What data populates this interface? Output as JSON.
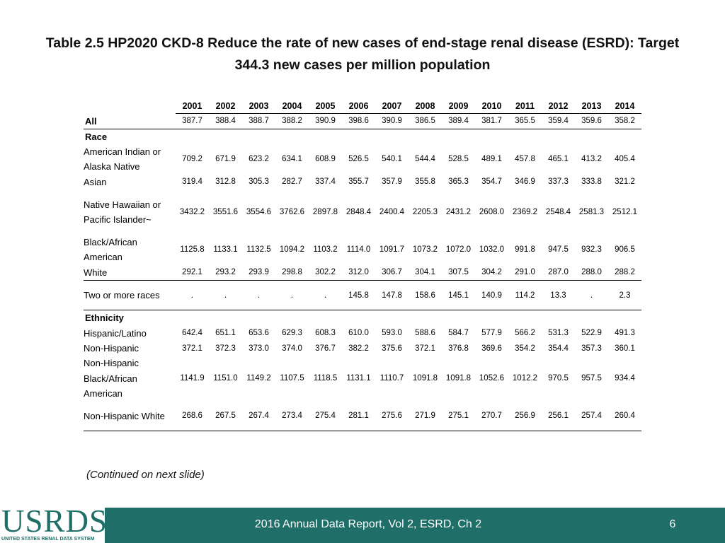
{
  "title": {
    "line1": "Table 2.5  HP2020 CKD-8 Reduce the rate of new cases of end-stage renal disease (ESRD): Target",
    "line2": "344.3 new cases per million population"
  },
  "table": {
    "years": [
      "2001",
      "2002",
      "2003",
      "2004",
      "2005",
      "2006",
      "2007",
      "2008",
      "2009",
      "2010",
      "2011",
      "2012",
      "2013",
      "2014"
    ],
    "all": {
      "label": "All",
      "values": [
        "387.7",
        "388.4",
        "388.7",
        "388.2",
        "390.9",
        "398.6",
        "390.9",
        "386.5",
        "389.4",
        "381.7",
        "365.5",
        "359.4",
        "359.6",
        "358.2"
      ]
    },
    "race_header": "Race",
    "race": [
      {
        "label": "American Indian or Alaska Native",
        "values": [
          "709.2",
          "671.9",
          "623.2",
          "634.1",
          "608.9",
          "526.5",
          "540.1",
          "544.4",
          "528.5",
          "489.1",
          "457.8",
          "465.1",
          "413.2",
          "405.4"
        ]
      },
      {
        "label": "Asian",
        "values": [
          "319.4",
          "312.8",
          "305.3",
          "282.7",
          "337.4",
          "355.7",
          "357.9",
          "355.8",
          "365.3",
          "354.7",
          "346.9",
          "337.3",
          "333.8",
          "321.2"
        ]
      },
      {
        "label": "Native Hawaiian or Pacific Islander~",
        "values": [
          "3432.2",
          "3551.6",
          "3554.6",
          "3762.6",
          "2897.8",
          "2848.4",
          "2400.4",
          "2205.3",
          "2431.2",
          "2608.0",
          "2369.2",
          "2548.4",
          "2581.3",
          "2512.1"
        ]
      },
      {
        "label": "Black/African American",
        "values": [
          "1125.8",
          "1133.1",
          "1132.5",
          "1094.2",
          "1103.2",
          "1114.0",
          "1091.7",
          "1073.2",
          "1072.0",
          "1032.0",
          "991.8",
          "947.5",
          "932.3",
          "906.5"
        ]
      },
      {
        "label": "White",
        "values": [
          "292.1",
          "293.2",
          "293.9",
          "298.8",
          "302.2",
          "312.0",
          "306.7",
          "304.1",
          "307.5",
          "304.2",
          "291.0",
          "287.0",
          "288.0",
          "288.2"
        ]
      },
      {
        "label": "Two or more races",
        "values": [
          ".",
          ".",
          ".",
          ".",
          ".",
          "145.8",
          "147.8",
          "158.6",
          "145.1",
          "140.9",
          "114.2",
          "13.3",
          ".",
          "2.3"
        ]
      }
    ],
    "ethnicity_header": "Ethnicity",
    "ethnicity": [
      {
        "label": "Hispanic/Latino",
        "values": [
          "642.4",
          "651.1",
          "653.6",
          "629.3",
          "608.3",
          "610.0",
          "593.0",
          "588.6",
          "584.7",
          "577.9",
          "566.2",
          "531.3",
          "522.9",
          "491.3"
        ]
      },
      {
        "label": "Non-Hispanic",
        "values": [
          "372.1",
          "372.3",
          "373.0",
          "374.0",
          "376.7",
          "382.2",
          "375.6",
          "372.1",
          "376.8",
          "369.6",
          "354.2",
          "354.4",
          "357.3",
          "360.1"
        ]
      },
      {
        "label": "Non-Hispanic Black/African American",
        "values": [
          "1141.9",
          "1151.0",
          "1149.2",
          "1107.5",
          "1118.5",
          "1131.1",
          "1110.7",
          "1091.8",
          "1091.8",
          "1052.6",
          "1012.2",
          "970.5",
          "957.5",
          "934.4"
        ]
      },
      {
        "label": "Non-Hispanic White",
        "values": [
          "268.6",
          "267.5",
          "267.4",
          "273.4",
          "275.4",
          "281.1",
          "275.6",
          "271.9",
          "275.1",
          "270.7",
          "256.9",
          "256.1",
          "257.4",
          "260.4"
        ]
      }
    ]
  },
  "continued_note": "(Continued on next slide)",
  "footer": {
    "logo_text": "USRDS",
    "logo_subtext": "UNITED STATES RENAL DATA SYSTEM",
    "report": "2016 Annual Data Report, Vol 2, ESRD, Ch 2",
    "page_number": "6",
    "colors": {
      "footer_bg": "#1f6e68",
      "logo": "#1f6e68"
    }
  }
}
